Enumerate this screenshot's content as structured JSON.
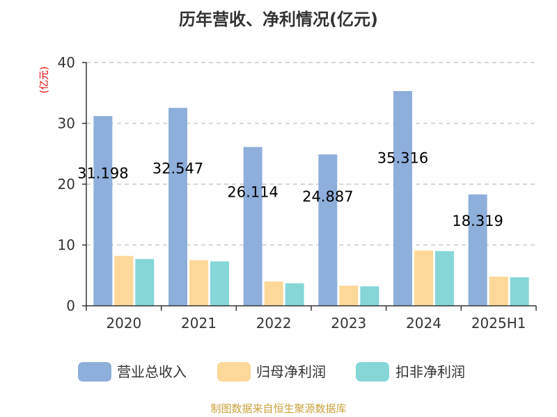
{
  "chart_data": {
    "type": "bar",
    "title": "历年营收、净利情况(亿元)",
    "unit_label": "(亿元)",
    "categories": [
      "2020",
      "2021",
      "2022",
      "2023",
      "2024",
      "2025H1"
    ],
    "series": [
      {
        "name": "营业总收入",
        "color": "#8eaedb",
        "values": [
          31.198,
          32.547,
          26.114,
          24.887,
          35.316,
          18.319
        ]
      },
      {
        "name": "归母净利润",
        "color": "#fdd898",
        "values": [
          8.2,
          7.5,
          4.0,
          3.3,
          9.1,
          4.8
        ]
      },
      {
        "name": "扣非净利润",
        "color": "#86d6d8",
        "values": [
          7.7,
          7.3,
          3.7,
          3.2,
          9.0,
          4.7
        ]
      }
    ],
    "data_labels": [
      "31.198",
      "32.547",
      "26.114",
      "24.887",
      "35.316",
      "18.319"
    ],
    "y_ticks": [
      "0",
      "10",
      "20",
      "30",
      "40"
    ],
    "ylim": [
      0,
      40
    ],
    "grid": true,
    "legend_position": "bottom"
  },
  "source_text": "制图数据来自恒生聚源数据库"
}
